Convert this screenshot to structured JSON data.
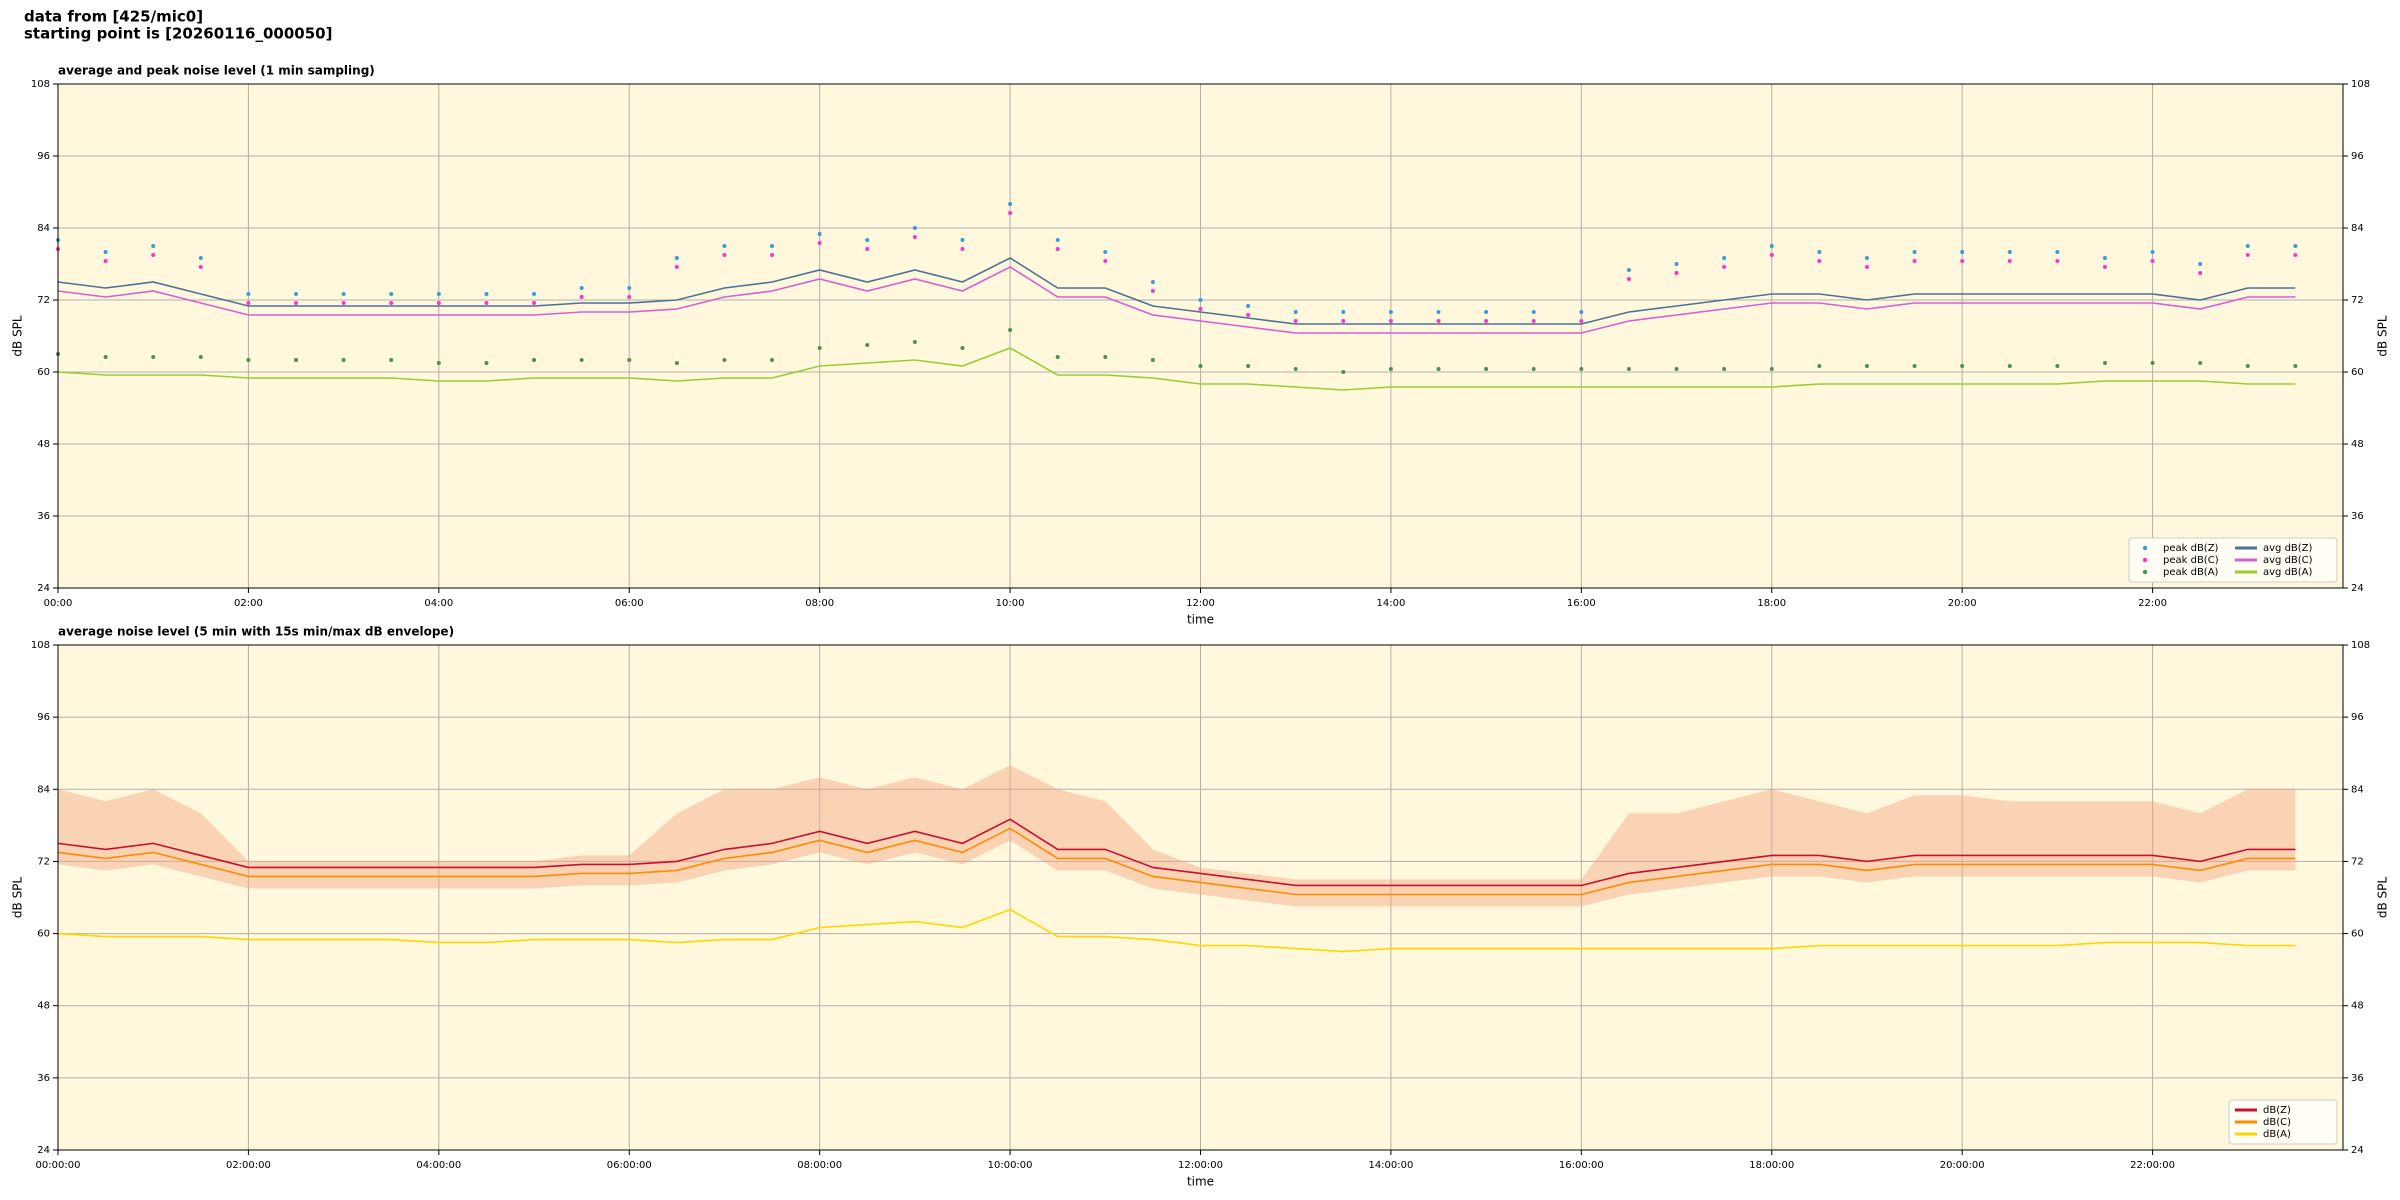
{
  "header": [
    "data from [425/mic0]",
    "starting point is [20260116_000050]"
  ],
  "chart_data": [
    {
      "type": "line",
      "title": "average and peak noise level (1 min sampling)",
      "xlabel": "time",
      "ylabel": "dB SPL",
      "y2label": "dB SPL",
      "x": [
        0,
        0.5,
        1,
        1.5,
        2,
        2.5,
        3,
        3.5,
        4,
        4.5,
        5,
        5.5,
        6,
        6.5,
        7,
        7.5,
        8,
        8.5,
        9,
        9.5,
        10,
        10.5,
        11,
        11.5,
        12,
        12.5,
        13,
        13.5,
        14,
        14.5,
        15,
        15.5,
        16,
        16.5,
        17,
        17.5,
        18,
        18.5,
        19,
        19.5,
        20,
        20.5,
        21,
        21.5,
        22,
        22.5,
        23,
        23.5
      ],
      "xlim": [
        0,
        24
      ],
      "xticks": [
        {
          "value": 0,
          "label": "00:00"
        },
        {
          "value": 2,
          "label": "02:00"
        },
        {
          "value": 4,
          "label": "04:00"
        },
        {
          "value": 6,
          "label": "06:00"
        },
        {
          "value": 8,
          "label": "08:00"
        },
        {
          "value": 10,
          "label": "10:00"
        },
        {
          "value": 12,
          "label": "12:00"
        },
        {
          "value": 14,
          "label": "14:00"
        },
        {
          "value": 16,
          "label": "16:00"
        },
        {
          "value": 18,
          "label": "18:00"
        },
        {
          "value": 20,
          "label": "20:00"
        },
        {
          "value": 22,
          "label": "22:00"
        }
      ],
      "ylim": [
        24,
        108
      ],
      "yticks": [
        24,
        36,
        48,
        60,
        72,
        84,
        96,
        108
      ],
      "y2lim": [
        24,
        108
      ],
      "y2ticks": [
        24,
        36,
        48,
        60,
        72,
        84,
        96,
        108
      ],
      "grid": true,
      "background": "#fff8dc",
      "legend": "lower right",
      "legend_columns": 2,
      "series": [
        {
          "name": "peak dB(Z)",
          "style": "scatter",
          "color": "#3a9bd9",
          "values": [
            82,
            80,
            81,
            79,
            73,
            73,
            73,
            73,
            73,
            73,
            73,
            74,
            74,
            79,
            81,
            81,
            83,
            82,
            84,
            82,
            88,
            82,
            80,
            75,
            72,
            71,
            70,
            70,
            70,
            70,
            70,
            70,
            70,
            77,
            78,
            79,
            81,
            80,
            79,
            80,
            80,
            80,
            80,
            79,
            80,
            78,
            81,
            81
          ]
        },
        {
          "name": "peak dB(C)",
          "style": "scatter",
          "color": "#ff33cc",
          "values": [
            80.5,
            78.5,
            79.5,
            77.5,
            71.5,
            71.5,
            71.5,
            71.5,
            71.5,
            71.5,
            71.5,
            72.5,
            72.5,
            77.5,
            79.5,
            79.5,
            81.5,
            80.5,
            82.5,
            80.5,
            86.5,
            80.5,
            78.5,
            73.5,
            70.5,
            69.5,
            68.5,
            68.5,
            68.5,
            68.5,
            68.5,
            68.5,
            68.5,
            75.5,
            76.5,
            77.5,
            79.5,
            78.5,
            77.5,
            78.5,
            78.5,
            78.5,
            78.5,
            77.5,
            78.5,
            76.5,
            79.5,
            79.5
          ]
        },
        {
          "name": "peak dB(A)",
          "style": "scatter",
          "color": "#4f8f4f",
          "values": [
            63,
            62.5,
            62.5,
            62.5,
            62,
            62,
            62,
            62,
            61.5,
            61.5,
            62,
            62,
            62,
            61.5,
            62,
            62,
            64,
            64.5,
            65,
            64,
            67,
            62.5,
            62.5,
            62,
            61,
            61,
            60.5,
            60,
            60.5,
            60.5,
            60.5,
            60.5,
            60.5,
            60.5,
            60.5,
            60.5,
            60.5,
            61,
            61,
            61,
            61,
            61,
            61,
            61.5,
            61.5,
            61.5,
            61,
            61
          ]
        },
        {
          "name": "avg dB(Z)",
          "style": "line",
          "color": "#4a7396",
          "values": [
            75,
            74,
            75,
            73,
            71,
            71,
            71,
            71,
            71,
            71,
            71,
            71.5,
            71.5,
            72,
            74,
            75,
            77,
            75,
            77,
            75,
            79,
            74,
            74,
            71,
            70,
            69,
            68,
            68,
            68,
            68,
            68,
            68,
            68,
            70,
            71,
            72,
            73,
            73,
            72,
            73,
            73,
            73,
            73,
            73,
            73,
            72,
            74,
            74
          ]
        },
        {
          "name": "avg dB(C)",
          "style": "line",
          "color": "#d65fd6",
          "values": [
            73.5,
            72.5,
            73.5,
            71.5,
            69.5,
            69.5,
            69.5,
            69.5,
            69.5,
            69.5,
            69.5,
            70,
            70,
            70.5,
            72.5,
            73.5,
            75.5,
            73.5,
            75.5,
            73.5,
            77.5,
            72.5,
            72.5,
            69.5,
            68.5,
            67.5,
            66.5,
            66.5,
            66.5,
            66.5,
            66.5,
            66.5,
            66.5,
            68.5,
            69.5,
            70.5,
            71.5,
            71.5,
            70.5,
            71.5,
            71.5,
            71.5,
            71.5,
            71.5,
            71.5,
            70.5,
            72.5,
            72.5
          ]
        },
        {
          "name": "avg dB(A)",
          "style": "line",
          "color": "#9acd32",
          "values": [
            60,
            59.5,
            59.5,
            59.5,
            59,
            59,
            59,
            59,
            58.5,
            58.5,
            59,
            59,
            59,
            58.5,
            59,
            59,
            61,
            61.5,
            62,
            61,
            64,
            59.5,
            59.5,
            59,
            58,
            58,
            57.5,
            57,
            57.5,
            57.5,
            57.5,
            57.5,
            57.5,
            57.5,
            57.5,
            57.5,
            57.5,
            58,
            58,
            58,
            58,
            58,
            58,
            58.5,
            58.5,
            58.5,
            58,
            58
          ]
        }
      ]
    },
    {
      "type": "line",
      "title": "average noise level (5 min with 15s min/max dB envelope)",
      "xlabel": "time",
      "ylabel": "dB SPL",
      "y2label": "dB SPL",
      "x": [
        0,
        0.5,
        1,
        1.5,
        2,
        2.5,
        3,
        3.5,
        4,
        4.5,
        5,
        5.5,
        6,
        6.5,
        7,
        7.5,
        8,
        8.5,
        9,
        9.5,
        10,
        10.5,
        11,
        11.5,
        12,
        12.5,
        13,
        13.5,
        14,
        14.5,
        15,
        15.5,
        16,
        16.5,
        17,
        17.5,
        18,
        18.5,
        19,
        19.5,
        20,
        20.5,
        21,
        21.5,
        22,
        22.5,
        23,
        23.5
      ],
      "xlim": [
        0,
        24
      ],
      "xticks": [
        {
          "value": 0,
          "label": "00:00:00"
        },
        {
          "value": 2,
          "label": "02:00:00"
        },
        {
          "value": 4,
          "label": "04:00:00"
        },
        {
          "value": 6,
          "label": "06:00:00"
        },
        {
          "value": 8,
          "label": "08:00:00"
        },
        {
          "value": 10,
          "label": "10:00:00"
        },
        {
          "value": 12,
          "label": "12:00:00"
        },
        {
          "value": 14,
          "label": "14:00:00"
        },
        {
          "value": 16,
          "label": "16:00:00"
        },
        {
          "value": 18,
          "label": "18:00:00"
        },
        {
          "value": 20,
          "label": "20:00:00"
        },
        {
          "value": 22,
          "label": "22:00:00"
        }
      ],
      "ylim": [
        24,
        108
      ],
      "yticks": [
        24,
        36,
        48,
        60,
        72,
        84,
        96,
        108
      ],
      "y2lim": [
        24,
        108
      ],
      "y2ticks": [
        24,
        36,
        48,
        60,
        72,
        84,
        96,
        108
      ],
      "grid": true,
      "background": "#fff8dc",
      "legend": "lower right",
      "legend_columns": 1,
      "envelope": {
        "color": "#f4a582",
        "low": [
          71.5,
          70.5,
          71.5,
          69.5,
          67.5,
          67.5,
          67.5,
          67.5,
          67.5,
          67.5,
          67.5,
          68,
          68,
          68.5,
          70.5,
          71.5,
          73.5,
          71.5,
          73.5,
          71.5,
          75.5,
          70.5,
          70.5,
          67.5,
          66.5,
          65.5,
          64.5,
          64.5,
          64.5,
          64.5,
          64.5,
          64.5,
          64.5,
          66.5,
          67.5,
          68.5,
          69.5,
          69.5,
          68.5,
          69.5,
          69.5,
          69.5,
          69.5,
          69.5,
          69.5,
          68.5,
          70.5,
          70.5
        ],
        "high": [
          84,
          82,
          84,
          80,
          72,
          72,
          72,
          72,
          72,
          72,
          72,
          73,
          73,
          80,
          84,
          84,
          86,
          84,
          86,
          84,
          88,
          84,
          82,
          74,
          71,
          70,
          69,
          69,
          69,
          69,
          69,
          69,
          69,
          80,
          80,
          82,
          84,
          82,
          80,
          83,
          83,
          82,
          82,
          82,
          82,
          80,
          84,
          84
        ]
      },
      "series": [
        {
          "name": "dB(Z)",
          "style": "line",
          "color": "#c8102e",
          "values": [
            75,
            74,
            75,
            73,
            71,
            71,
            71,
            71,
            71,
            71,
            71,
            71.5,
            71.5,
            72,
            74,
            75,
            77,
            75,
            77,
            75,
            79,
            74,
            74,
            71,
            70,
            69,
            68,
            68,
            68,
            68,
            68,
            68,
            68,
            70,
            71,
            72,
            73,
            73,
            72,
            73,
            73,
            73,
            73,
            73,
            73,
            72,
            74,
            74
          ]
        },
        {
          "name": "dB(C)",
          "style": "line",
          "color": "#ff8c00",
          "values": [
            73.5,
            72.5,
            73.5,
            71.5,
            69.5,
            69.5,
            69.5,
            69.5,
            69.5,
            69.5,
            69.5,
            70,
            70,
            70.5,
            72.5,
            73.5,
            75.5,
            73.5,
            75.5,
            73.5,
            77.5,
            72.5,
            72.5,
            69.5,
            68.5,
            67.5,
            66.5,
            66.5,
            66.5,
            66.5,
            66.5,
            66.5,
            66.5,
            68.5,
            69.5,
            70.5,
            71.5,
            71.5,
            70.5,
            71.5,
            71.5,
            71.5,
            71.5,
            71.5,
            71.5,
            70.5,
            72.5,
            72.5
          ]
        },
        {
          "name": "dB(A)",
          "style": "line",
          "color": "#ffd700",
          "values": [
            60,
            59.5,
            59.5,
            59.5,
            59,
            59,
            59,
            59,
            58.5,
            58.5,
            59,
            59,
            59,
            58.5,
            59,
            59,
            61,
            61.5,
            62,
            61,
            64,
            59.5,
            59.5,
            59,
            58,
            58,
            57.5,
            57,
            57.5,
            57.5,
            57.5,
            57.5,
            57.5,
            57.5,
            57.5,
            57.5,
            57.5,
            58,
            58,
            58,
            58,
            58,
            58,
            58.5,
            58.5,
            58.5,
            58,
            58
          ]
        }
      ]
    }
  ]
}
